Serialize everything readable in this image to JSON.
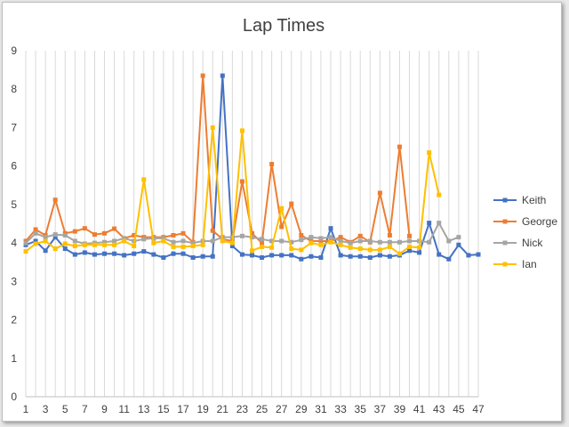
{
  "chart_data": {
    "type": "line",
    "title": "Lap Times",
    "xlabel": "",
    "ylabel": "",
    "ylim": [
      0,
      9
    ],
    "y_ticks": [
      0,
      1,
      2,
      3,
      4,
      5,
      6,
      7,
      8,
      9
    ],
    "x_range": [
      1,
      47
    ],
    "x_tick_labels": [
      1,
      3,
      5,
      7,
      9,
      11,
      13,
      15,
      17,
      19,
      21,
      23,
      25,
      27,
      29,
      31,
      33,
      35,
      37,
      39,
      41,
      43,
      45,
      47
    ],
    "grid": "vertical",
    "legend": "right",
    "series": [
      {
        "name": "Keith",
        "color": "#4472C4",
        "values": [
          3.95,
          4.05,
          3.8,
          4.15,
          3.85,
          3.7,
          3.75,
          3.7,
          3.72,
          3.72,
          3.68,
          3.72,
          3.78,
          3.7,
          3.62,
          3.72,
          3.72,
          3.62,
          3.65,
          3.65,
          8.35,
          3.92,
          3.7,
          3.68,
          3.62,
          3.68,
          3.68,
          3.68,
          3.58,
          3.65,
          3.62,
          4.38,
          3.68,
          3.65,
          3.65,
          3.62,
          3.68,
          3.65,
          3.68,
          3.8,
          3.75,
          4.52,
          3.7,
          3.58,
          3.95,
          3.68,
          3.7
        ]
      },
      {
        "name": "George",
        "color": "#ED7D31",
        "values": [
          4.05,
          4.35,
          4.2,
          5.12,
          4.25,
          4.3,
          4.38,
          4.22,
          4.25,
          4.37,
          4.12,
          4.2,
          4.15,
          4.15,
          4.15,
          4.2,
          4.25,
          4.02,
          8.35,
          4.32,
          4.1,
          4.05,
          5.6,
          4.25,
          4.0,
          6.05,
          4.42,
          5.02,
          4.2,
          4.05,
          4.05,
          4.05,
          4.15,
          4.02,
          4.18,
          4.02,
          5.3,
          4.2,
          6.5,
          4.18
        ]
      },
      {
        "name": "Nick",
        "color": "#A5A5A5",
        "values": [
          4.0,
          4.25,
          4.15,
          4.22,
          4.2,
          4.05,
          3.98,
          4.0,
          4.02,
          4.05,
          4.12,
          4.05,
          4.1,
          4.12,
          4.12,
          4.02,
          4.05,
          4.0,
          4.05,
          4.05,
          4.15,
          4.15,
          4.18,
          4.15,
          4.1,
          4.05,
          4.05,
          4.02,
          4.08,
          4.15,
          4.12,
          4.15,
          4.05,
          4.0,
          4.05,
          4.05,
          4.02,
          4.02,
          4.02,
          4.05,
          4.05,
          4.02,
          4.52,
          4.05,
          4.15
        ]
      },
      {
        "name": "Ian",
        "color": "#FFC000",
        "values": [
          3.78,
          3.98,
          4.05,
          3.85,
          3.98,
          3.92,
          3.95,
          3.95,
          3.95,
          3.95,
          4.05,
          3.92,
          5.65,
          4.0,
          4.05,
          3.9,
          3.9,
          3.92,
          3.95,
          7.0,
          4.05,
          4.0,
          6.92,
          3.8,
          3.9,
          3.88,
          4.9,
          3.85,
          3.82,
          4.0,
          3.95,
          4.02,
          3.95,
          3.88,
          3.85,
          3.82,
          3.82,
          3.9,
          3.72,
          3.9,
          3.88,
          6.35,
          5.25
        ]
      }
    ]
  }
}
